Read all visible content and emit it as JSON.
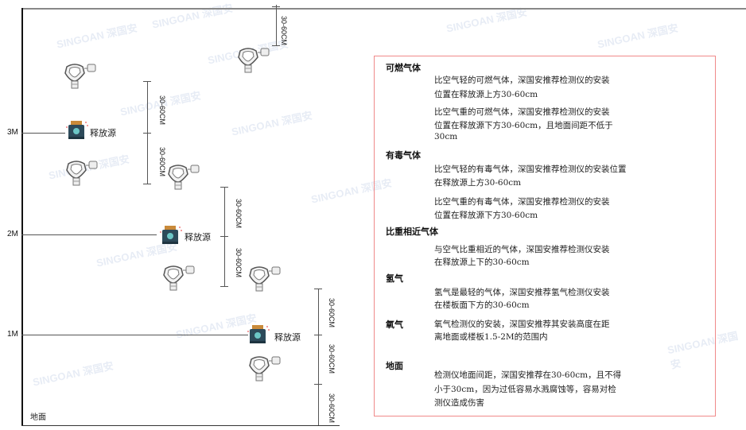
{
  "levels": {
    "m3": "3M",
    "m2": "2M",
    "m1": "1M",
    "ground": "地面"
  },
  "source_label": "释放源",
  "dimension_label": "30-60CM",
  "watermark": "SINGOAN 深国安",
  "colors": {
    "box_border": "#f08a8a",
    "source_body": "#2d4a5a",
    "source_cap": "#c98a3a"
  },
  "notes": {
    "flammable": {
      "title": "可燃气体",
      "lighter": [
        "比空气轻的可燃气体，深国安推荐检测仪的安装",
        "位置在释放源上方30-60cm"
      ],
      "heavier": [
        "比空气重的可燃气体，深国安推荐检测仪的安装",
        "位置在释放源下方30-60cm，且地面间距不低于",
        "30cm"
      ]
    },
    "toxic": {
      "title": "有毒气体",
      "lighter": [
        "比空气轻的有毒气体，深国安推荐检测仪的安装位置",
        "在释放源上方30-60cm"
      ],
      "heavier": [
        "比空气重的有毒气体，深国安推荐检测仪的安装",
        "位置在释放源下方30-60cm"
      ]
    },
    "similar": {
      "title": "比重相近气体",
      "text": [
        "与空气比重相近的气体，深国安推荐检测仪安装",
        "在释放源上下的30-60cm"
      ]
    },
    "hydrogen": {
      "title": "氢气",
      "text": [
        "氢气是最轻的气体，深国安推荐氢气检测仪安装",
        "在楼板面下方的30-60cm"
      ]
    },
    "oxygen": {
      "title": "氧气",
      "text": [
        "氧气检测仪的安装，深国安推荐其安装高度在距",
        "离地面或楼板1.5-2M的范围内"
      ]
    },
    "ground": {
      "title": "地面",
      "text": [
        "检测仪地面间距，深国安推荐在30-60cm，且不得",
        "小于30cm，因为过低容易水溅腐蚀等，容易对检",
        "测仪造成伤害"
      ]
    }
  }
}
